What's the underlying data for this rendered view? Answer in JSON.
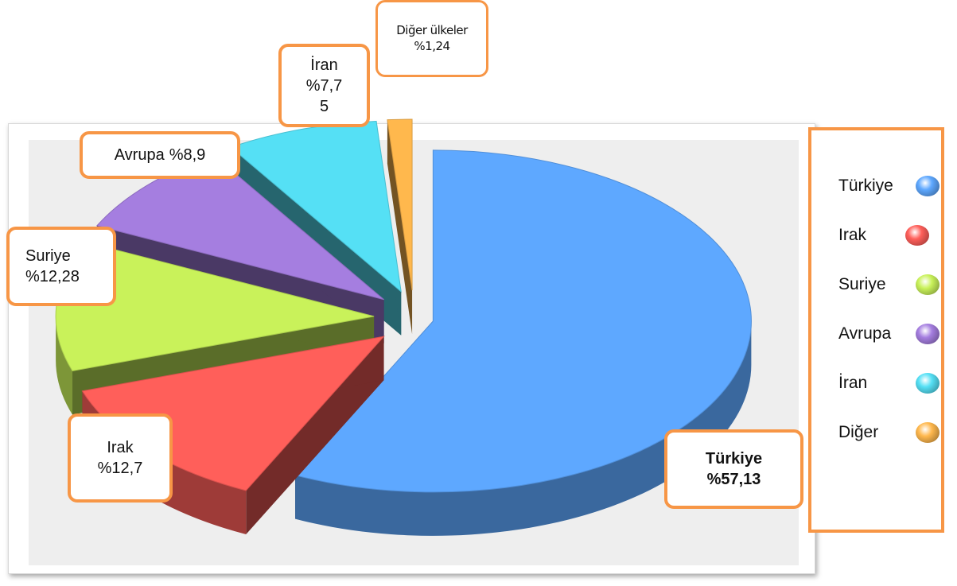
{
  "chart_data": {
    "type": "pie3d",
    "categories": [
      "Türkiye",
      "Irak",
      "Suriye",
      "Avrupa",
      "İran",
      "Diğer"
    ],
    "slice_labels": [
      "Türkiye",
      "Irak",
      "Suriye",
      "Avrupa",
      "İran",
      "Diğer ülkeler"
    ],
    "values": [
      57.13,
      12.7,
      12.28,
      8.9,
      7.75,
      1.24
    ],
    "value_labels": [
      "%57,13",
      "%12,7",
      "%12,28",
      "%8,9",
      "%7,75",
      "%1,24"
    ],
    "colors": [
      "#5ea8ff",
      "#ff5f5a",
      "#c9f25a",
      "#a57ee0",
      "#55e0f5",
      "#ffb84d"
    ],
    "legend": "right"
  }
}
